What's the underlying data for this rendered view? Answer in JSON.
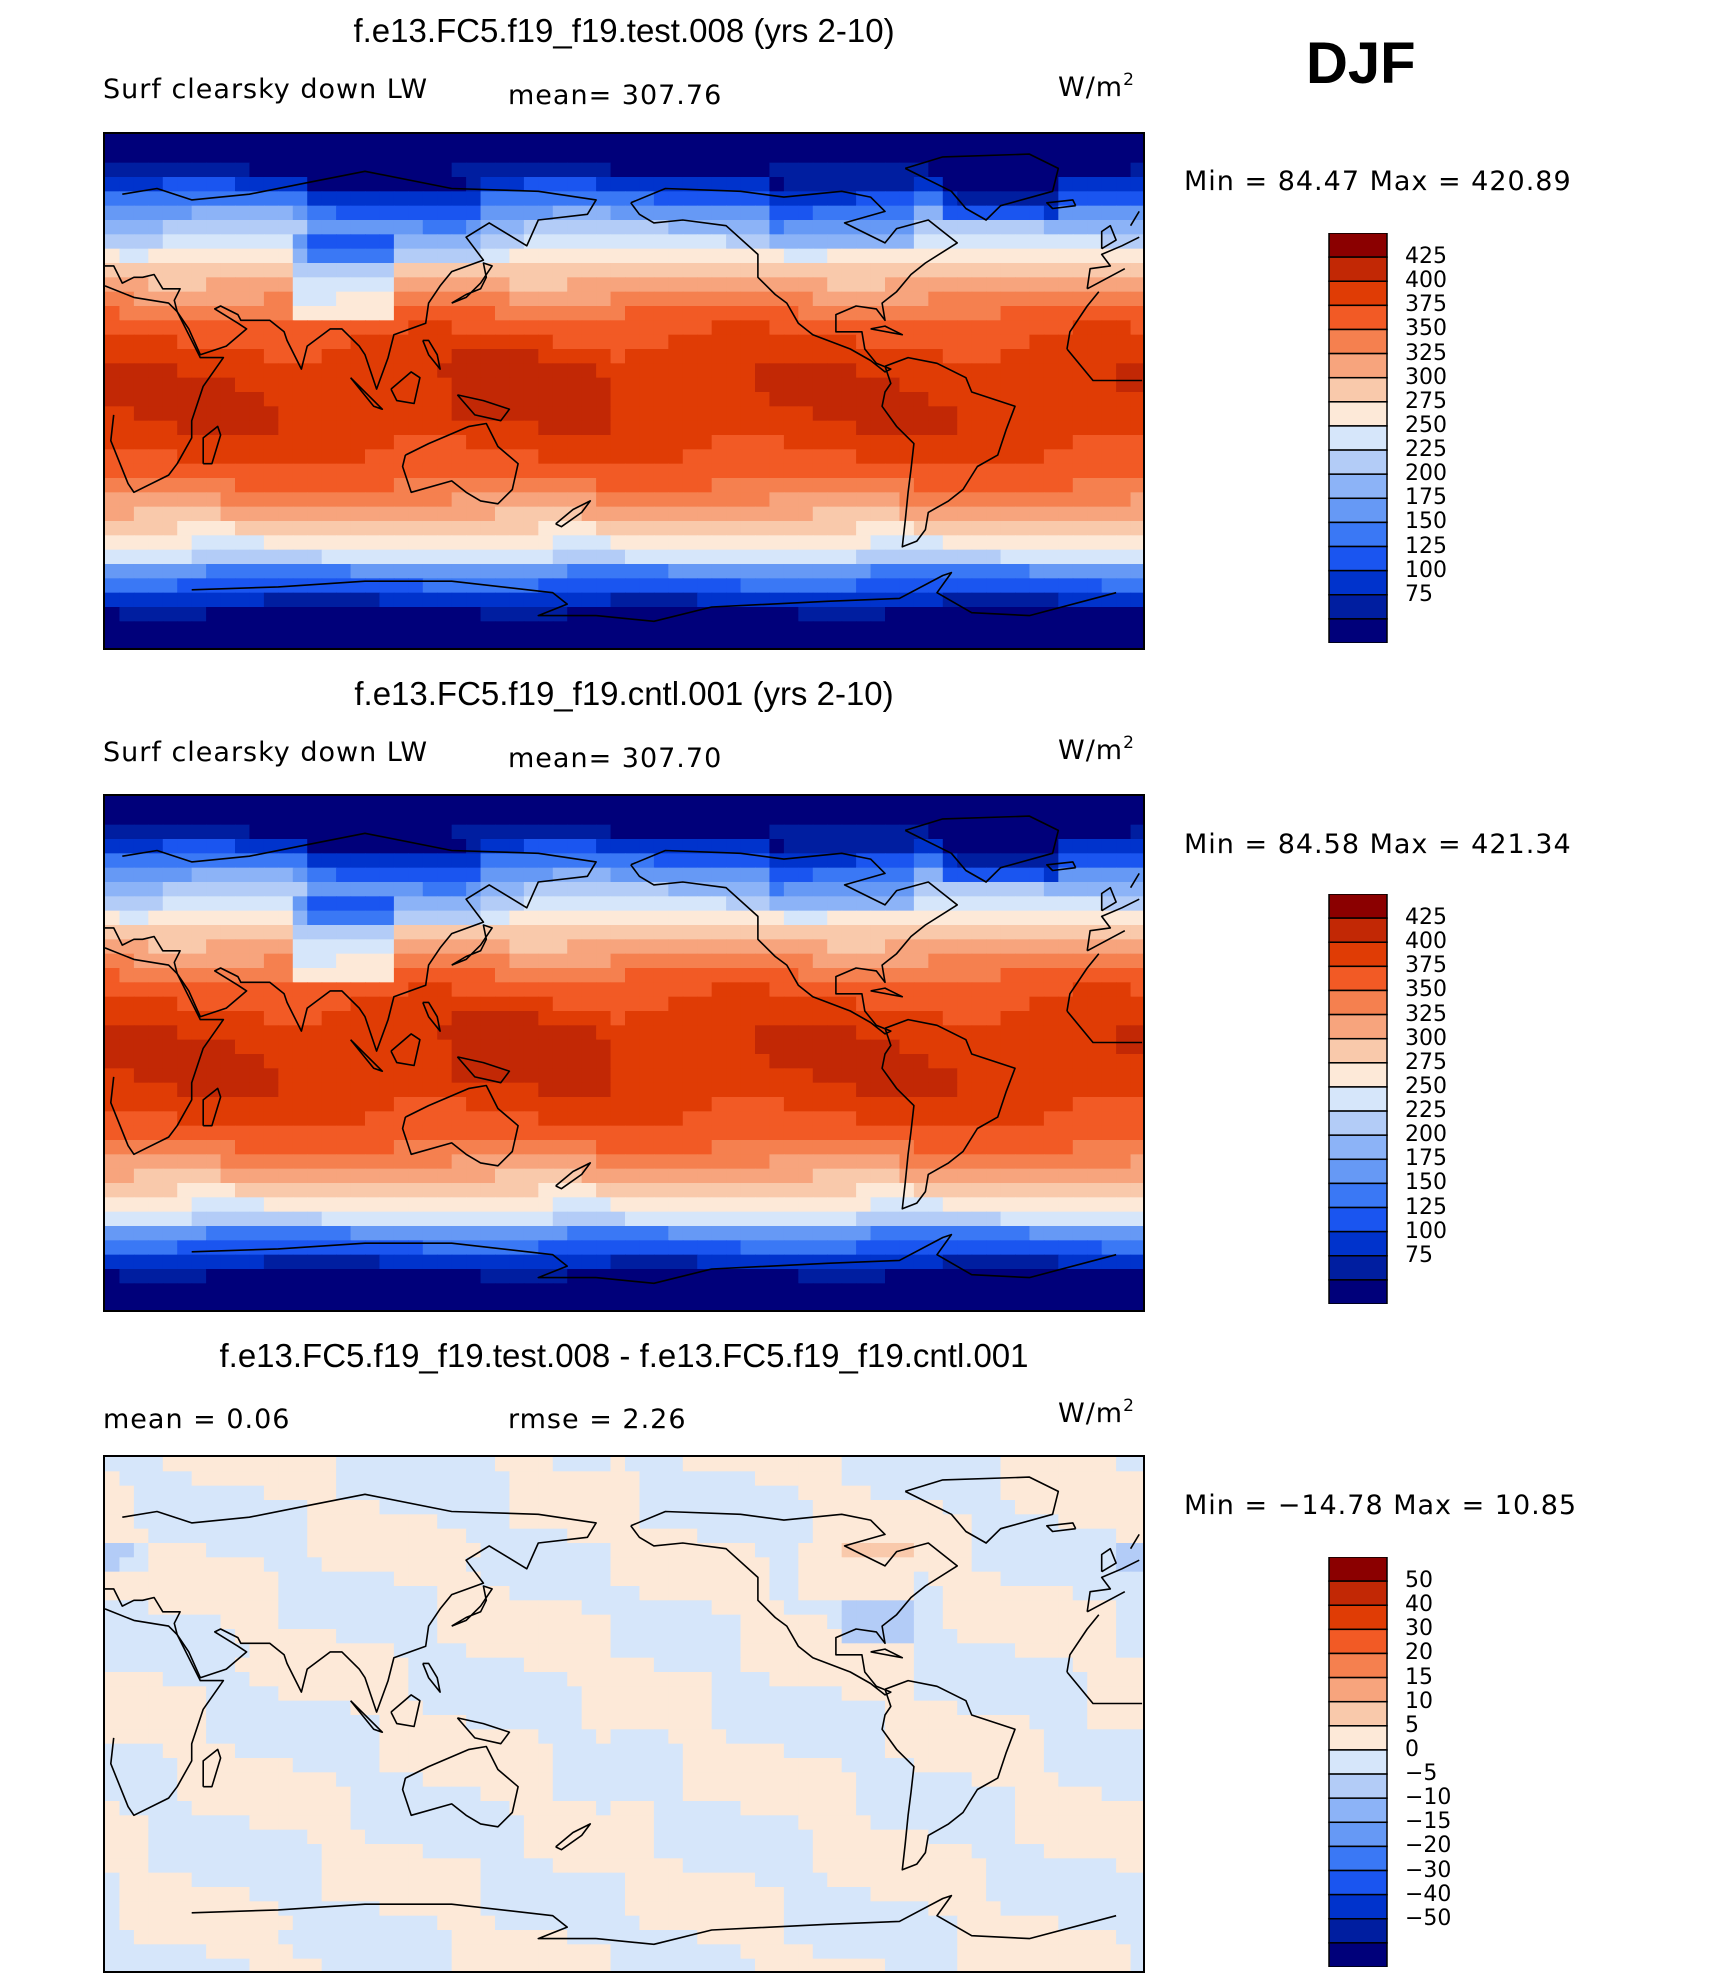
{
  "season": "DJF",
  "colors": {
    "scale_abs": [
      "#00007a",
      "#001ea0",
      "#0033cc",
      "#1a55f0",
      "#3a78f5",
      "#6699f5",
      "#8cb3f7",
      "#b3ccf7",
      "#d6e6fa",
      "#fde9d8",
      "#f9c9ab",
      "#f7a47d",
      "#f5804f",
      "#f25a25",
      "#e03c05",
      "#c22805",
      "#8b0000"
    ],
    "scale_diff": [
      "#00007a",
      "#001ea0",
      "#0033cc",
      "#1a55f0",
      "#3a78f5",
      "#6699f5",
      "#8cb3f7",
      "#b3ccf7",
      "#d6e6fa",
      "#fde9d8",
      "#f9c9ab",
      "#f7a47d",
      "#f5804f",
      "#f25a25",
      "#e03c05",
      "#c22805",
      "#8b0000"
    ]
  },
  "panels": [
    {
      "title": "f.e13.FC5.f19_f19.test.008 (yrs 2-10)",
      "left_label": "Surf clearsky down LW",
      "stat_label": "mean= 307.76",
      "units": "W/m",
      "units_sup": "2",
      "minmax": "Min =   84.47  Max  =  420.89",
      "colorbar_ticks": [
        "425",
        "400",
        "375",
        "350",
        "325",
        "300",
        "275",
        "250",
        "225",
        "200",
        "175",
        "150",
        "125",
        "100",
        "75"
      ],
      "field": "abs"
    },
    {
      "title": "f.e13.FC5.f19_f19.cntl.001 (yrs 2-10)",
      "left_label": "Surf clearsky down LW",
      "stat_label": "mean= 307.70",
      "units": "W/m",
      "units_sup": "2",
      "minmax": "Min =   84.58  Max  =  421.34",
      "colorbar_ticks": [
        "425",
        "400",
        "375",
        "350",
        "325",
        "300",
        "275",
        "250",
        "225",
        "200",
        "175",
        "150",
        "125",
        "100",
        "75"
      ],
      "field": "abs"
    },
    {
      "title": "f.e13.FC5.f19_f19.test.008 - f.e13.FC5.f19_f19.cntl.001",
      "left_label": "mean  =     0.06",
      "stat_label": "rmse  =     2.26",
      "units": "W/m",
      "units_sup": "2",
      "minmax": "Min  =  −14.78  Max  =    10.85",
      "colorbar_ticks": [
        "50",
        "40",
        "30",
        "20",
        "15",
        "10",
        "5",
        "0",
        "−5",
        "−10",
        "−15",
        "−20",
        "−30",
        "−40",
        "−50"
      ],
      "field": "diff"
    }
  ]
}
